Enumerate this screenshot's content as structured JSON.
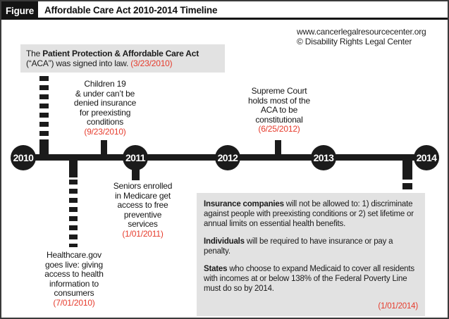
{
  "header": {
    "figure_label": "Figure",
    "title": "Affordable Care Act 2010-2014 Timeline"
  },
  "credits": {
    "website": "www.cancerlegalresourcecenter.org",
    "copyright": "© Disability Rights Legal Center"
  },
  "colors": {
    "ink_black": "#1b1b1b",
    "accent_red": "#e63b2c",
    "box_gray": "#e2e2e2"
  },
  "timeline": {
    "years": [
      "2010",
      "2011",
      "2012",
      "2013",
      "2014"
    ]
  },
  "events": {
    "aca_signed": {
      "pre": "The ",
      "bold": "Patient Protection & Affordable Care Act",
      "rest": " (“ACA”) was signed into law. ",
      "date": "(3/23/2010)"
    },
    "children": {
      "lines": [
        "Children 19",
        "& under can’t be",
        "denied insurance",
        "for preexisting",
        "conditions"
      ],
      "date": "(9/23/2010)"
    },
    "supreme_court": {
      "lines": [
        "Supreme Court",
        "holds most of the",
        "ACA to be",
        "constitutional"
      ],
      "date": "(6/25/2012)"
    },
    "seniors": {
      "lines": [
        "Seniors enrolled",
        "in Medicare get",
        "access to free",
        "preventive",
        "services"
      ],
      "date": "(1/01/2011)"
    },
    "healthcare_gov": {
      "lines": [
        "Healthcare.gov",
        "goes live: giving",
        "access to health",
        "information to",
        "consumers"
      ],
      "date": "(7/01/2010)"
    },
    "mandates_2014": {
      "p1_bold": "Insurance companies",
      "p1_rest": " will not be allowed to: 1) discriminate against people with preexisting conditions or 2) set lifetime or annual limits on essential health benefits.",
      "p2_bold": "Individuals",
      "p2_rest": " will be required to have insurance or pay a penalty.",
      "p3_bold": "States",
      "p3_rest": " who choose to expand Medicaid to cover all residents with incomes at or below 138% of the Federal Poverty Line must do so by 2014.",
      "date": "(1/01/2014)"
    }
  }
}
